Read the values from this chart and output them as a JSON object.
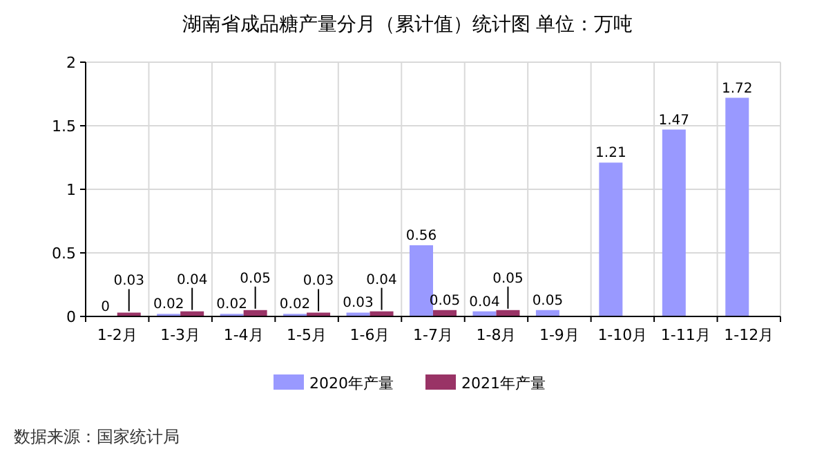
{
  "chart_data": {
    "type": "bar",
    "title": "湖南省成品糖产量分月（累计值）统计图 单位：万吨",
    "categories": [
      "1-2月",
      "1-3月",
      "1-4月",
      "1-5月",
      "1-6月",
      "1-7月",
      "1-8月",
      "1-9月",
      "1-10月",
      "1-11月",
      "1-12月"
    ],
    "series": [
      {
        "name": "2020年产量",
        "color": "#9999ff",
        "values": [
          0,
          0.02,
          0.02,
          0.02,
          0.03,
          0.56,
          0.04,
          0.05,
          1.21,
          1.47,
          1.72
        ]
      },
      {
        "name": "2021年产量",
        "color": "#993366",
        "values": [
          0.03,
          0.04,
          0.05,
          0.03,
          0.04,
          0.05,
          0.05,
          null,
          null,
          null,
          null
        ]
      }
    ],
    "ylim": [
      0,
      2
    ],
    "yticks": [
      0,
      0.5,
      1,
      1.5,
      2
    ],
    "grid": true,
    "legend": "bottom",
    "data_labels": true,
    "annotations": [
      "数据来源：国家统计局"
    ]
  }
}
